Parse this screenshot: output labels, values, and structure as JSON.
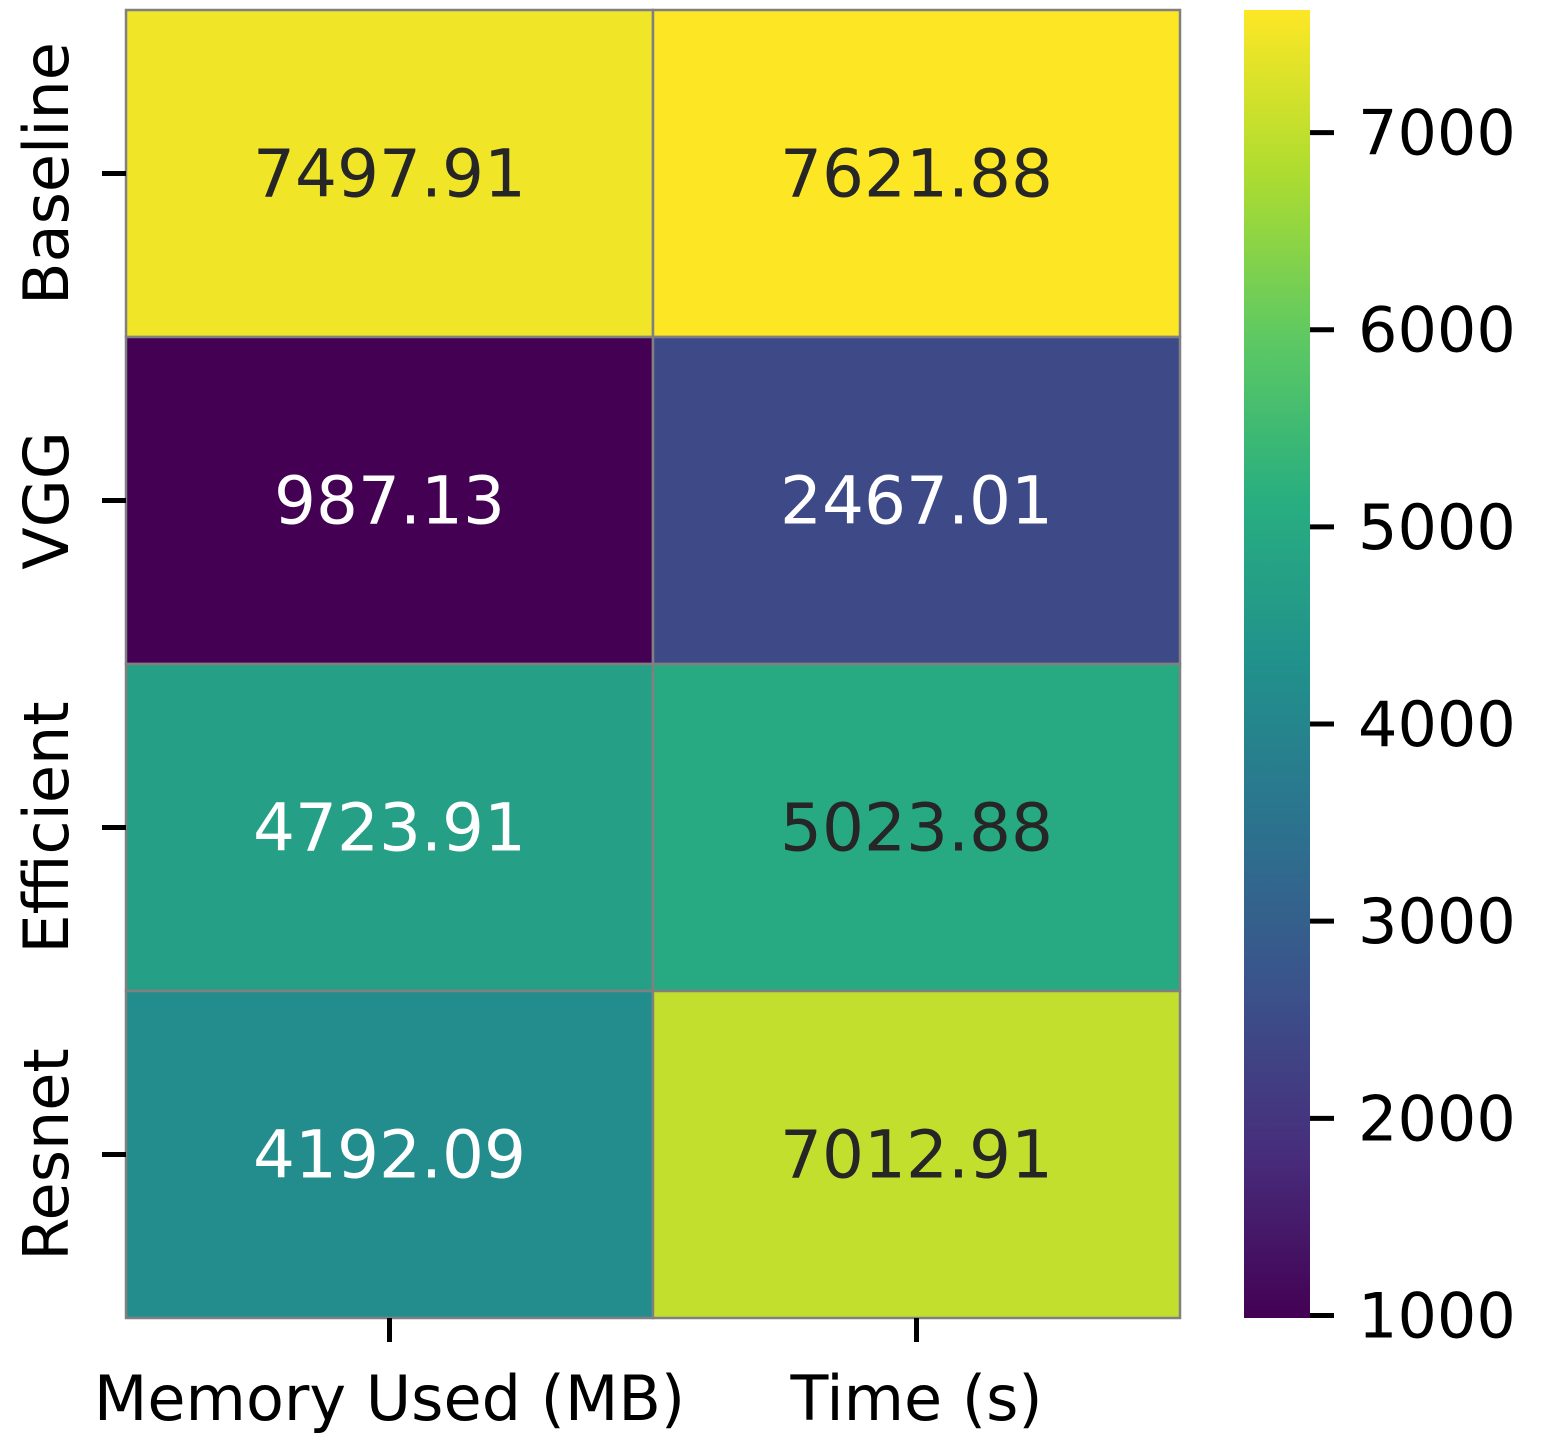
{
  "chart_data": {
    "type": "heatmap",
    "title": "",
    "xlabel": "",
    "ylabel": "",
    "columns": [
      "Memory Used (MB)",
      "Time (s)"
    ],
    "rows": [
      "Baseline",
      "VGG",
      "Efficient",
      "Resnet"
    ],
    "values": [
      [
        7497.91,
        7621.88
      ],
      [
        987.13,
        2467.01
      ],
      [
        4723.91,
        5023.88
      ],
      [
        4192.09,
        7012.91
      ]
    ],
    "cell_labels": [
      [
        "7497.91",
        "7621.88"
      ],
      [
        "987.13",
        "2467.01"
      ],
      [
        "4723.91",
        "5023.88"
      ],
      [
        "4192.09",
        "7012.91"
      ]
    ],
    "colormap": "viridis",
    "color_range": [
      987.13,
      7621.88
    ],
    "colorbar_ticks": [
      1000,
      2000,
      3000,
      4000,
      5000,
      6000,
      7000
    ],
    "colorbar_placement": "right",
    "cell_border_color": "#808080",
    "label_color_light": "#ffffff",
    "label_color_dark": "#262626"
  }
}
